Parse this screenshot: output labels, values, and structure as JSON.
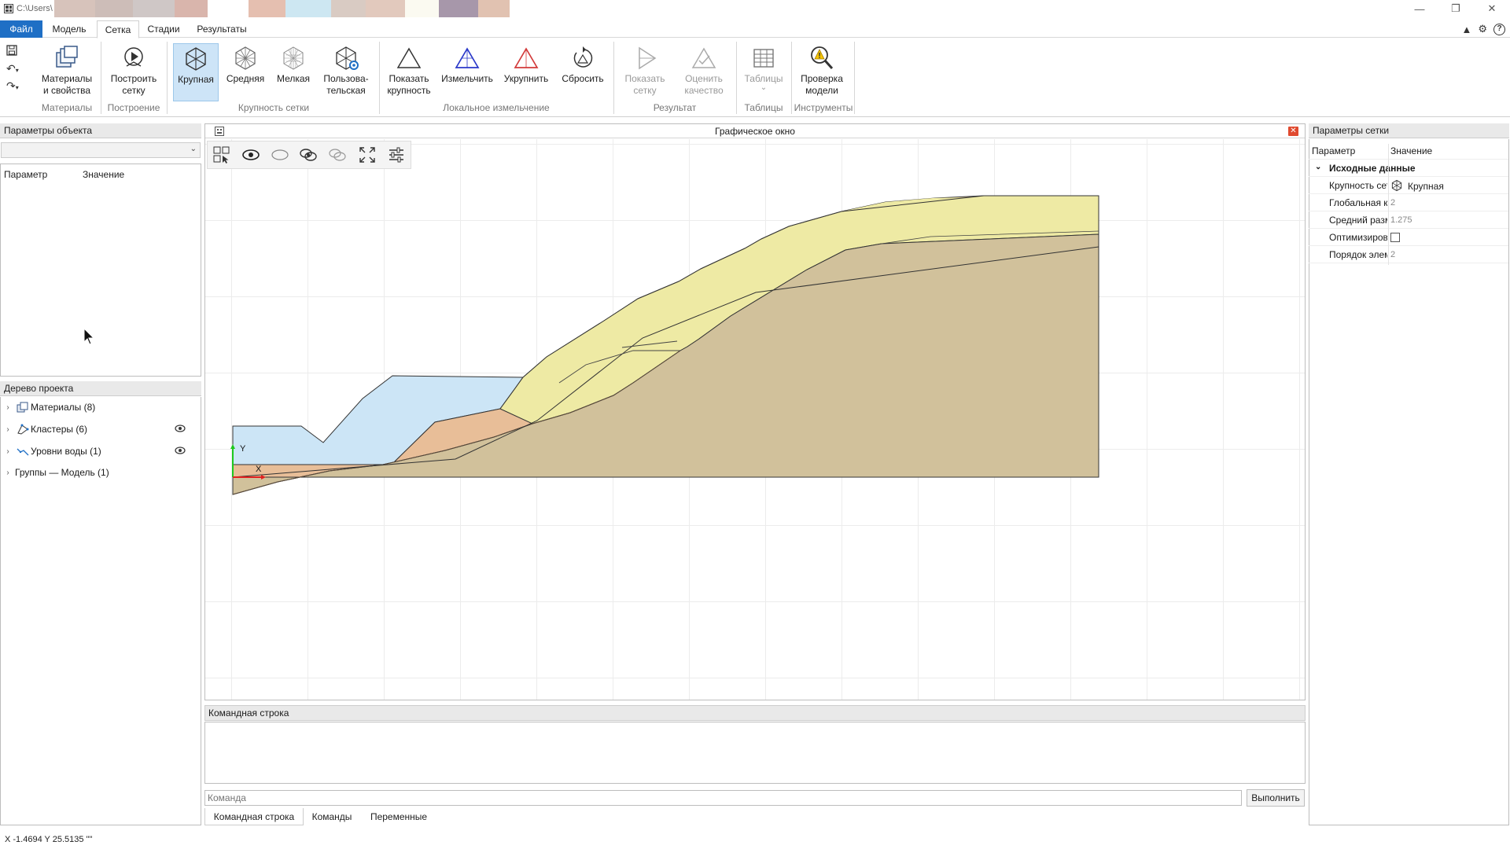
{
  "titlebar": {
    "path": "C:\\Users\\",
    "swatches": [
      "#d7c3bb",
      "#cdbdb8",
      "#cfc7c6",
      "#d9b5ac",
      "#ffffff",
      "#e5bfb0",
      "#cde7f2",
      "#d9cbc3",
      "#e2c9bd",
      "#fbfaf1",
      "#a797aa",
      "#e1c2b1"
    ]
  },
  "menu": {
    "file": "Файл",
    "tabs": [
      "Модель",
      "Сетка",
      "Стадии",
      "Результаты"
    ],
    "active_tab": "Сетка"
  },
  "ribbon": {
    "buttons": {
      "materials": "Материалы\nи свойства",
      "build_mesh": "Построить\nсетку",
      "coarse": "Крупная",
      "medium": "Средняя",
      "fine": "Мелкая",
      "custom": "Пользова-\nтельская",
      "show_size": "Показать\nкрупность",
      "refine": "Измельчить",
      "coarsen": "Укрупнить",
      "reset": "Сбросить",
      "show_mesh": "Показать\nсетку",
      "evaluate": "Оценить\nкачество",
      "tables": "Таблицы",
      "check_model": "Проверка\nмодели"
    },
    "groups": {
      "materials": "Материалы",
      "build": "Построение",
      "mesh_size": "Крупность сетки",
      "local": "Локальное измельчение",
      "result": "Результат",
      "tables": "Таблицы",
      "tools": "Инструменты"
    },
    "tables_arrow": "⌄"
  },
  "object_params": {
    "header": "Параметры объекта",
    "col_param": "Параметр",
    "col_value": "Значение"
  },
  "project_tree": {
    "header": "Дерево проекта",
    "items": [
      "Материалы (8)",
      "Кластеры (6)",
      "Уровни воды (1)",
      "Группы — Модель (1)"
    ]
  },
  "graphics": {
    "title": "Графическое окно",
    "close_glyph": "✕",
    "axis_x": "X",
    "axis_y": "Y",
    "colors": {
      "water": "#cce5f6",
      "orange": "#e8be98",
      "yellow": "#eeeaa4",
      "base": "#d1c19b"
    }
  },
  "command": {
    "header": "Командная строка",
    "placeholder": "Команда",
    "run": "Выполнить",
    "tabs": [
      "Командная строка",
      "Команды",
      "Переменные"
    ]
  },
  "mesh_params": {
    "header": "Параметры сетки",
    "col_param": "Параметр",
    "col_value": "Значение",
    "section": "Исходные данные",
    "rows": [
      {
        "k": "Крупность сетки",
        "v": "Крупная"
      },
      {
        "k": "Глобальная крупность",
        "v": "2"
      },
      {
        "k": "Средний размер",
        "v": "1.275"
      },
      {
        "k": "Оптимизировать",
        "v": ""
      },
      {
        "k": "Порядок элементов",
        "v": "2"
      }
    ]
  },
  "status": {
    "coords": "X -1.4694  Y 25.5135  \"\""
  },
  "accent": "#1f6fc5"
}
